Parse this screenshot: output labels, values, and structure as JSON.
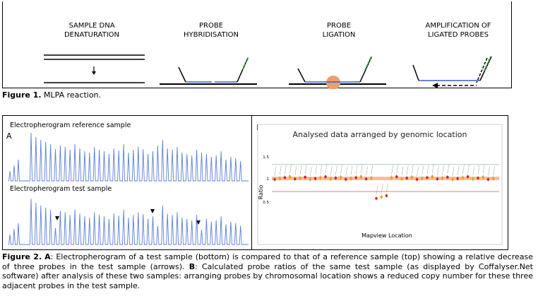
{
  "figure1": {
    "steps": [
      {
        "line1": "SAMPLE DNA",
        "line2": "DENATURATION"
      },
      {
        "line1": "PROBE",
        "line2": "HYBRIDISATION"
      },
      {
        "line1": "PROBE",
        "line2": "LIGATION"
      },
      {
        "line1": "AMPLIFICATION OF",
        "line2": "LIGATED PROBES"
      }
    ],
    "caption_label": "Figure 1.",
    "caption_text": " MLPA reaction."
  },
  "figure2": {
    "panel_a": {
      "letter": "A",
      "title_ref": "Electropherogram reference sample",
      "title_test": "Electropherogram test sample"
    },
    "panel_b": {
      "letter": "B",
      "title": "Analysed data arranged by genomic location",
      "y_axis_label": "Ratio",
      "x_axis_label": "Mapview Location",
      "y_ticks": [
        "1.5",
        "1",
        "0.5"
      ]
    },
    "caption": {
      "label_fig": "Figure 2.",
      "label_a": "A",
      "text_a": ": Electropherogram of a test sample (bottom) is compared to that of a reference sample (top) showing a relative decrease of three probes in the test sample (arrows).",
      "label_b": "B",
      "text_b": ": Calculated probe ratios of the same test sample (as displayed by Coffalyser.Net software) after analysis of these two samples: arranging probes by chromosomal location shows a reduced copy number for these three adjacent probes in the test sample."
    }
  },
  "colors": {
    "peak_blue": "#5b7fd6",
    "probe_green": "#2e9e3a",
    "probe_blue": "#3a5fbf",
    "ligation_dot": "#e8a070",
    "ratio_band": "#f0a878",
    "ratio_point_red": "#d62020",
    "ratio_point_orange": "#f0a020"
  }
}
